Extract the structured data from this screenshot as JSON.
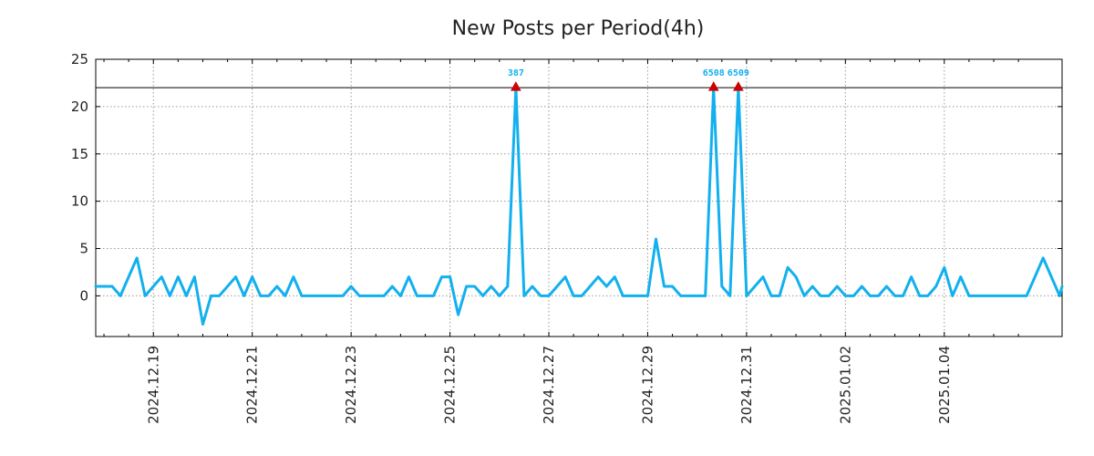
{
  "chart_data": {
    "type": "line",
    "title": "New Posts per Period(4h)",
    "xlabel": "",
    "ylabel": "",
    "ylim": [
      -4.3,
      25
    ],
    "yticks": [
      0,
      5,
      10,
      15,
      20,
      25
    ],
    "xticks": [
      "2024.12.19",
      "2024.12.21",
      "2024.12.23",
      "2024.12.25",
      "2024.12.27",
      "2024.12.29",
      "2024.12.31",
      "2025.01.02",
      "2025.01.04"
    ],
    "grid": true,
    "reference_line": 22,
    "series": [
      {
        "name": "New Posts",
        "color": "#12b0ee",
        "points": [
          [
            0,
            1
          ],
          [
            2,
            1
          ],
          [
            3,
            0
          ],
          [
            4,
            2
          ],
          [
            5,
            4
          ],
          [
            6,
            0
          ],
          [
            8,
            2
          ],
          [
            9,
            0
          ],
          [
            10,
            2
          ],
          [
            11,
            0
          ],
          [
            12,
            2
          ],
          [
            13,
            -3
          ],
          [
            14,
            0
          ],
          [
            15,
            0
          ],
          [
            17,
            2
          ],
          [
            18,
            0
          ],
          [
            19,
            2
          ],
          [
            20,
            0
          ],
          [
            21,
            0
          ],
          [
            22,
            1
          ],
          [
            23,
            0
          ],
          [
            24,
            2
          ],
          [
            25,
            0
          ],
          [
            30,
            0
          ],
          [
            31,
            1
          ],
          [
            32,
            0
          ],
          [
            35,
            0
          ],
          [
            36,
            1
          ],
          [
            37,
            0
          ],
          [
            38,
            2
          ],
          [
            39,
            0
          ],
          [
            41,
            0
          ],
          [
            42,
            2
          ],
          [
            43,
            2
          ],
          [
            44,
            -2
          ],
          [
            45,
            1
          ],
          [
            46,
            1
          ],
          [
            47,
            0
          ],
          [
            48,
            1
          ],
          [
            49,
            0
          ],
          [
            50,
            1
          ],
          [
            51,
            22
          ],
          [
            52,
            0
          ],
          [
            53,
            1
          ],
          [
            54,
            0
          ],
          [
            55,
            0
          ],
          [
            57,
            2
          ],
          [
            58,
            0
          ],
          [
            59,
            0
          ],
          [
            61,
            2
          ],
          [
            62,
            1
          ],
          [
            63,
            2
          ],
          [
            64,
            0
          ],
          [
            67,
            0
          ],
          [
            68,
            6
          ],
          [
            69,
            1
          ],
          [
            70,
            1
          ],
          [
            71,
            0
          ],
          [
            74,
            0
          ],
          [
            75,
            22
          ],
          [
            76,
            1
          ],
          [
            77,
            0
          ],
          [
            78,
            22
          ],
          [
            79,
            0
          ],
          [
            81,
            2
          ],
          [
            82,
            0
          ],
          [
            83,
            0
          ],
          [
            84,
            3
          ],
          [
            85,
            2
          ],
          [
            86,
            0
          ],
          [
            87,
            1
          ],
          [
            88,
            0
          ],
          [
            89,
            0
          ],
          [
            90,
            1
          ],
          [
            91,
            0
          ],
          [
            92,
            0
          ],
          [
            93,
            1
          ],
          [
            94,
            0
          ],
          [
            95,
            0
          ],
          [
            96,
            1
          ],
          [
            97,
            0
          ],
          [
            98,
            0
          ],
          [
            99,
            2
          ],
          [
            100,
            0
          ],
          [
            101,
            0
          ],
          [
            102,
            1
          ],
          [
            103,
            3
          ],
          [
            104,
            0
          ],
          [
            105,
            2
          ],
          [
            106,
            0
          ],
          [
            109,
            0
          ],
          [
            110,
            0
          ],
          [
            111,
            0
          ],
          [
            112,
            0
          ],
          [
            113,
            0
          ],
          [
            114,
            2
          ],
          [
            115,
            4
          ],
          [
            117,
            0
          ],
          [
            117.3,
            1
          ]
        ]
      }
    ],
    "annotations": [
      {
        "label": "387",
        "x": 51,
        "y": 22,
        "color": "#12b0ee",
        "marker_color": "#cc0000"
      },
      {
        "label": "6508",
        "x": 75,
        "y": 22,
        "color": "#12b0ee",
        "marker_color": "#cc0000"
      },
      {
        "label": "6509",
        "x": 78,
        "y": 22,
        "color": "#12b0ee",
        "marker_color": "#cc0000"
      }
    ]
  }
}
